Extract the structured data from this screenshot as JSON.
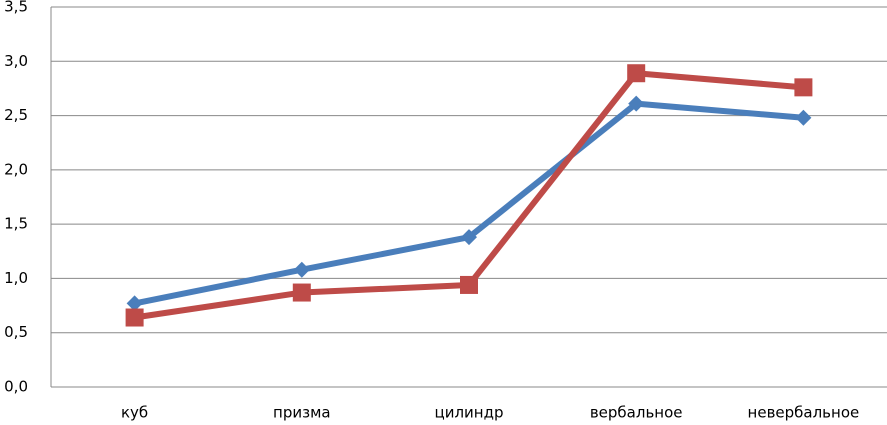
{
  "chart_data": {
    "type": "line",
    "categories": [
      "куб",
      "призма",
      "цилиндр",
      "вербальное",
      "невербальное"
    ],
    "series": [
      {
        "color": "#4a7ebb",
        "marker": "diamond",
        "values": [
          0.77,
          1.08,
          1.38,
          2.61,
          2.48
        ]
      },
      {
        "color": "#be4b48",
        "marker": "square",
        "values": [
          0.64,
          0.87,
          0.94,
          2.89,
          2.76
        ]
      }
    ],
    "ylim": [
      0,
      3.5
    ],
    "yticks": [
      {
        "value": 0,
        "label": "0,0"
      },
      {
        "value": 0.5,
        "label": "0,5"
      },
      {
        "value": 1,
        "label": "1,0"
      },
      {
        "value": 1.5,
        "label": "1,5"
      },
      {
        "value": 2,
        "label": "2,0"
      },
      {
        "value": 2.5,
        "label": "2,5"
      },
      {
        "value": 3,
        "label": "3,0"
      },
      {
        "value": 3.5,
        "label": "3,5"
      }
    ],
    "grid": true
  }
}
